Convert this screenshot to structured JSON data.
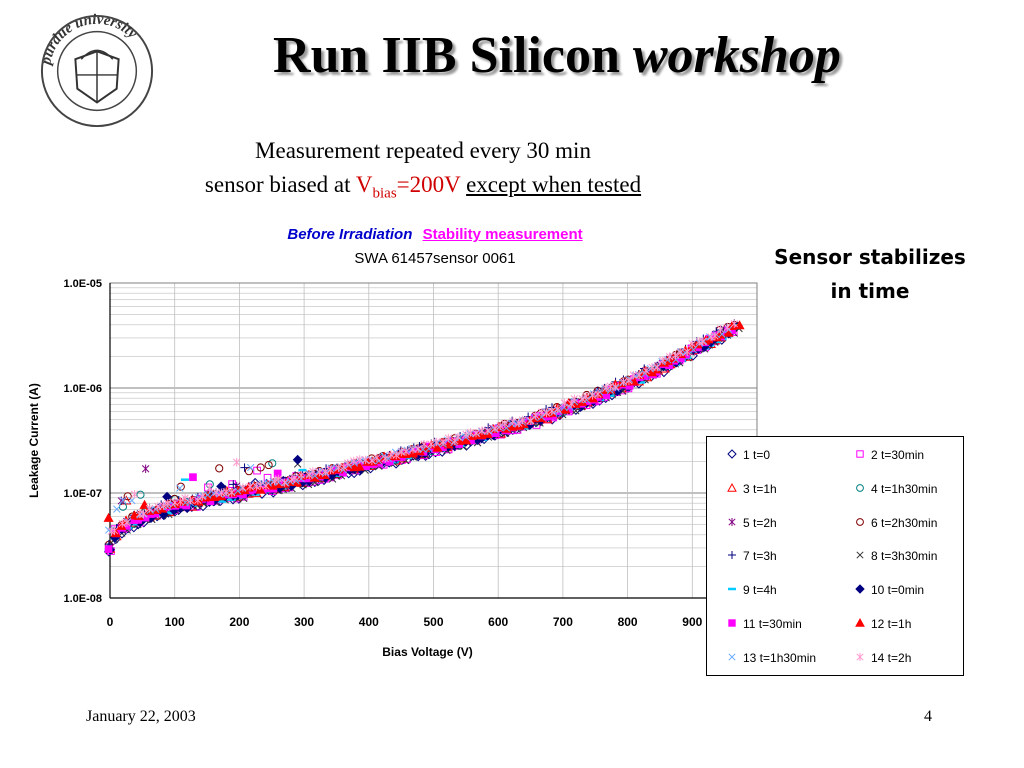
{
  "slide": {
    "title_main": "Run IIB Silicon",
    "title_italic": "workshop",
    "subtitle_line1": "Measurement repeated every 30 min",
    "subtitle_line2_pre": "sensor biased at ",
    "subtitle_v": "V",
    "subtitle_sub": "bias",
    "subtitle_val": "=200V",
    "subtitle_post": "except when tested",
    "side_note_line1": "Sensor stabilizes",
    "side_note_line2": "in time",
    "footer_date": "January 22, 2003",
    "footer_page": "4",
    "logo_text": "purdue university"
  },
  "chart_data": {
    "type": "scatter",
    "title_part1": "Before Irradiation",
    "title_part2": "Stability measurement",
    "subtitle": "SWA 61457sensor 0061",
    "xlabel": "Bias Voltage (V)",
    "ylabel": "Leakage Current (A)",
    "x_ticks": [
      "0",
      "100",
      "200",
      "300",
      "400",
      "500",
      "600",
      "700",
      "800",
      "900"
    ],
    "y_ticks": [
      "1.0E-05",
      "1.0E-06",
      "1.0E-07",
      "1.0E-08"
    ],
    "xlim": [
      0,
      1000
    ],
    "ylim": [
      1e-08,
      1e-05
    ],
    "y_scale": "log",
    "grid": true,
    "legend_position": "bottom-right",
    "curve_points": [
      [
        0,
        3e-08
      ],
      [
        10,
        4.2e-08
      ],
      [
        20,
        4.8e-08
      ],
      [
        40,
        5.5e-08
      ],
      [
        60,
        6.2e-08
      ],
      [
        80,
        6.8e-08
      ],
      [
        100,
        7.4e-08
      ],
      [
        150,
        8.6e-08
      ],
      [
        200,
        1e-07
      ],
      [
        250,
        1.15e-07
      ],
      [
        300,
        1.35e-07
      ],
      [
        350,
        1.6e-07
      ],
      [
        400,
        1.9e-07
      ],
      [
        450,
        2.25e-07
      ],
      [
        500,
        2.7e-07
      ],
      [
        550,
        3.2e-07
      ],
      [
        600,
        3.9e-07
      ],
      [
        650,
        4.8e-07
      ],
      [
        700,
        6.2e-07
      ],
      [
        750,
        8.2e-07
      ],
      [
        800,
        1.1e-06
      ],
      [
        850,
        1.55e-06
      ],
      [
        900,
        2.3e-06
      ],
      [
        940,
        3.1e-06
      ],
      [
        975,
        4e-06
      ]
    ],
    "series": [
      {
        "name": "1 t=0",
        "symbol": "diamond",
        "color": "#000080",
        "fill": false
      },
      {
        "name": "2 t=30min",
        "symbol": "square",
        "color": "#ff00ff",
        "fill": false
      },
      {
        "name": "3 t=1h",
        "symbol": "triangle",
        "color": "#ff0000",
        "fill": false
      },
      {
        "name": "4 t=1h30min",
        "symbol": "circle",
        "color": "#008080",
        "fill": false
      },
      {
        "name": "5 t=2h",
        "symbol": "star",
        "color": "#800080",
        "fill": false
      },
      {
        "name": "6 t=2h30min",
        "symbol": "circle",
        "color": "#800000",
        "fill": false
      },
      {
        "name": "7 t=3h",
        "symbol": "plus",
        "color": "#000080",
        "fill": false
      },
      {
        "name": "8 t=3h30min",
        "symbol": "cross",
        "color": "#333333",
        "fill": false
      },
      {
        "name": "9 t=4h",
        "symbol": "dash",
        "color": "#00ccff",
        "fill": false
      },
      {
        "name": "10 t=0min",
        "symbol": "diamond",
        "color": "#000080",
        "fill": true
      },
      {
        "name": "11 t=30min",
        "symbol": "square",
        "color": "#ff00ff",
        "fill": true
      },
      {
        "name": "12 t=1h",
        "symbol": "triangle",
        "color": "#ff0000",
        "fill": true
      },
      {
        "name": "13 t=1h30min",
        "symbol": "cross",
        "color": "#66aaff",
        "fill": false
      },
      {
        "name": "14 t=2h",
        "symbol": "star",
        "color": "#ff99cc",
        "fill": false
      }
    ]
  }
}
